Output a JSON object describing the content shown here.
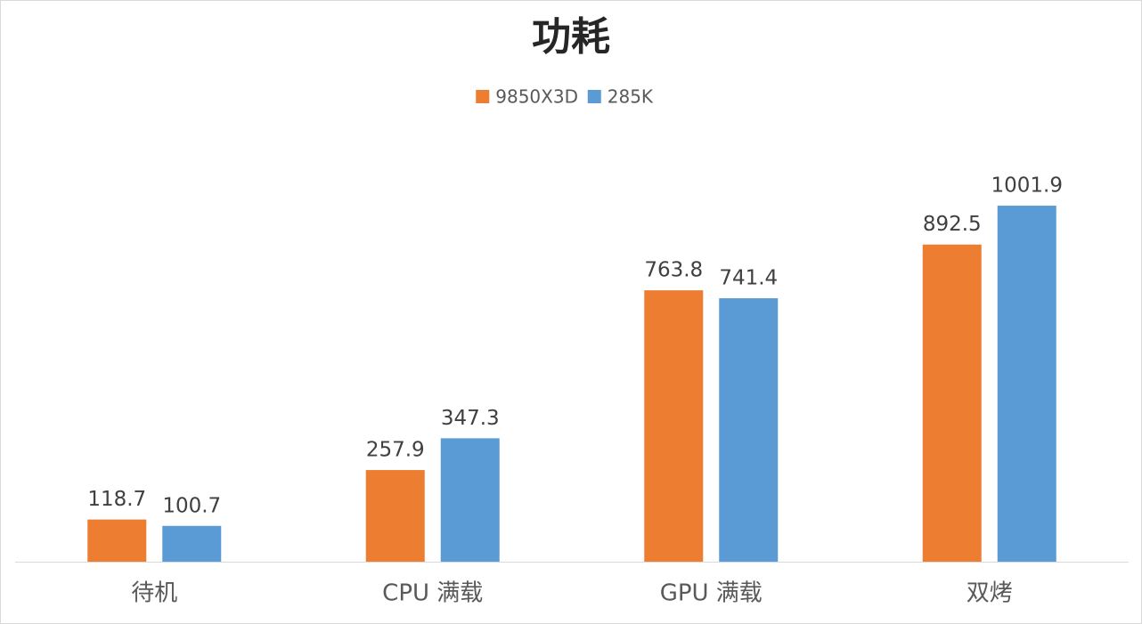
{
  "chart_data": {
    "type": "bar",
    "title": "功耗",
    "categories": [
      "待机",
      "CPU 满载",
      "GPU 满载",
      "双烤"
    ],
    "series": [
      {
        "name": "9850X3D",
        "color": "#ed7d31",
        "values": [
          118.7,
          257.9,
          763.8,
          892.5
        ]
      },
      {
        "name": "285K",
        "color": "#5b9bd5",
        "values": [
          100.7,
          347.3,
          741.4,
          1001.9
        ]
      }
    ],
    "ylim": [
      0,
      1200
    ],
    "legend": "top"
  }
}
